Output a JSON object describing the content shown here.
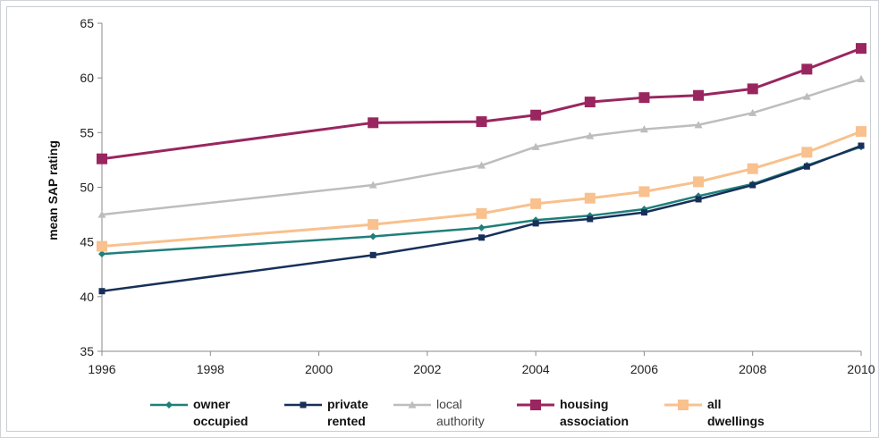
{
  "chart_data": {
    "type": "line",
    "title": "",
    "xlabel": "",
    "ylabel": "mean SAP rating",
    "xlim": [
      1996,
      2010
    ],
    "ylim": [
      35,
      65
    ],
    "xticks": [
      1996,
      1998,
      2000,
      2002,
      2004,
      2006,
      2008,
      2010
    ],
    "yticks": [
      35,
      40,
      45,
      50,
      55,
      60,
      65
    ],
    "grid": false,
    "legend_position": "bottom",
    "series": [
      {
        "name": "owner occupied",
        "legend_lines": [
          "owner",
          "occupied"
        ],
        "legend_bold": true,
        "color": "#1f7f7a",
        "marker": "diamond",
        "x": [
          1996,
          2001,
          2003,
          2004,
          2005,
          2006,
          2007,
          2008,
          2009,
          2010
        ],
        "y": [
          43.9,
          45.5,
          46.3,
          47.0,
          47.4,
          48.0,
          49.2,
          50.3,
          52.0,
          53.7
        ]
      },
      {
        "name": "private rented",
        "legend_lines": [
          "private",
          "rented"
        ],
        "legend_bold": true,
        "color": "#17305a",
        "marker": "square",
        "x": [
          1996,
          2001,
          2003,
          2004,
          2005,
          2006,
          2007,
          2008,
          2009,
          2010
        ],
        "y": [
          40.5,
          43.8,
          45.4,
          46.7,
          47.1,
          47.7,
          48.9,
          50.2,
          51.9,
          53.8
        ]
      },
      {
        "name": "local authority",
        "legend_lines": [
          "local",
          "authority"
        ],
        "legend_bold": false,
        "color": "#bdbdbd",
        "marker": "triangle",
        "x": [
          1996,
          2001,
          2003,
          2004,
          2005,
          2006,
          2007,
          2008,
          2009,
          2010
        ],
        "y": [
          47.5,
          50.2,
          52.0,
          53.7,
          54.7,
          55.3,
          55.7,
          56.8,
          58.3,
          59.9
        ]
      },
      {
        "name": "housing association",
        "legend_lines": [
          "housing",
          "association"
        ],
        "legend_bold": true,
        "color": "#99265f",
        "marker": "square-large",
        "x": [
          1996,
          2001,
          2003,
          2004,
          2005,
          2006,
          2007,
          2008,
          2009,
          2010
        ],
        "y": [
          52.6,
          55.9,
          56.0,
          56.6,
          57.8,
          58.2,
          58.4,
          59.0,
          60.8,
          62.7
        ]
      },
      {
        "name": "all dwellings",
        "legend_lines": [
          "all",
          "dwellings"
        ],
        "legend_bold": true,
        "color": "#f8c18e",
        "marker": "square-large",
        "x": [
          1996,
          2001,
          2003,
          2004,
          2005,
          2006,
          2007,
          2008,
          2009,
          2010
        ],
        "y": [
          44.6,
          46.6,
          47.6,
          48.5,
          49.0,
          49.6,
          50.5,
          51.7,
          53.2,
          55.1
        ]
      }
    ]
  }
}
